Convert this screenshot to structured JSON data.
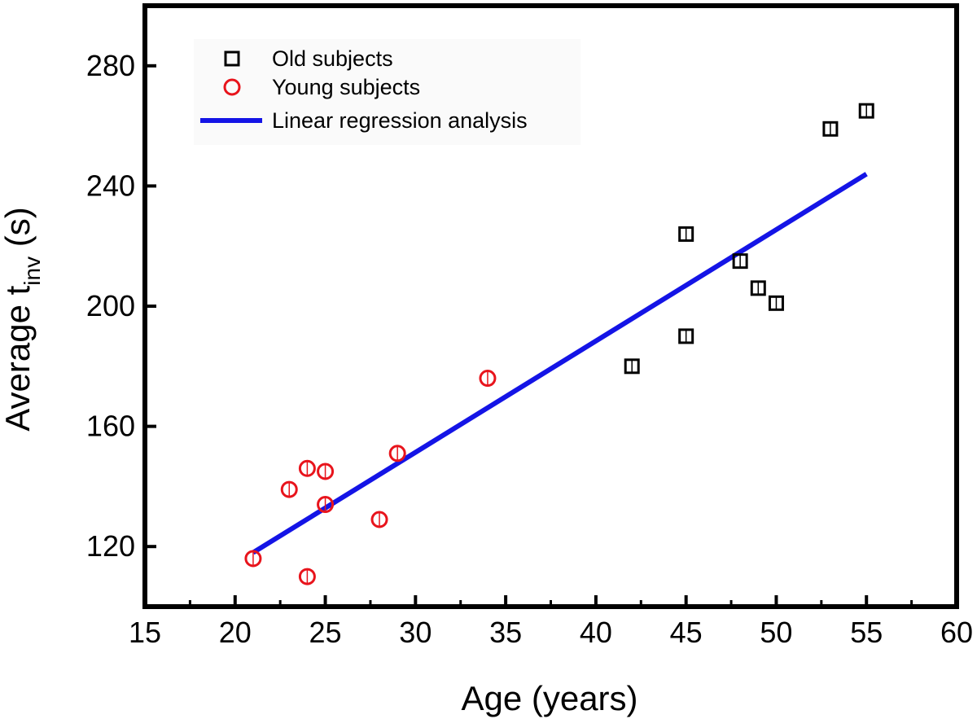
{
  "chart_data": {
    "type": "scatter",
    "title": "",
    "xlabel": "Age (years)",
    "ylabel": {
      "main": "Average t",
      "subscript": "inv",
      "suffix": " (s)"
    },
    "xlim": [
      15,
      60
    ],
    "ylim": [
      100,
      300
    ],
    "x_ticks": [
      "15",
      "20",
      "25",
      "30",
      "35",
      "40",
      "45",
      "50",
      "55",
      "60"
    ],
    "y_ticks": [
      "120",
      "160",
      "200",
      "240",
      "280"
    ],
    "legend_position": "top-left",
    "series": [
      {
        "name": "Old subjects",
        "marker": "square",
        "color": "#000000",
        "points": [
          {
            "x": 42,
            "y": 180
          },
          {
            "x": 45,
            "y": 224
          },
          {
            "x": 45,
            "y": 190
          },
          {
            "x": 48,
            "y": 215
          },
          {
            "x": 49,
            "y": 206
          },
          {
            "x": 50,
            "y": 201
          },
          {
            "x": 53,
            "y": 259
          },
          {
            "x": 55,
            "y": 265
          }
        ]
      },
      {
        "name": "Young subjects",
        "marker": "circle",
        "color": "#e8141c",
        "points": [
          {
            "x": 21,
            "y": 116
          },
          {
            "x": 23,
            "y": 139
          },
          {
            "x": 24,
            "y": 146
          },
          {
            "x": 24,
            "y": 110
          },
          {
            "x": 25,
            "y": 145
          },
          {
            "x": 25,
            "y": 134
          },
          {
            "x": 28,
            "y": 129
          },
          {
            "x": 29,
            "y": 151
          },
          {
            "x": 34,
            "y": 176
          }
        ]
      },
      {
        "name": "Linear regression analysis",
        "marker": "line",
        "color": "#1414e6",
        "points": [
          {
            "x": 21,
            "y": 118
          },
          {
            "x": 55,
            "y": 244
          }
        ]
      }
    ]
  }
}
